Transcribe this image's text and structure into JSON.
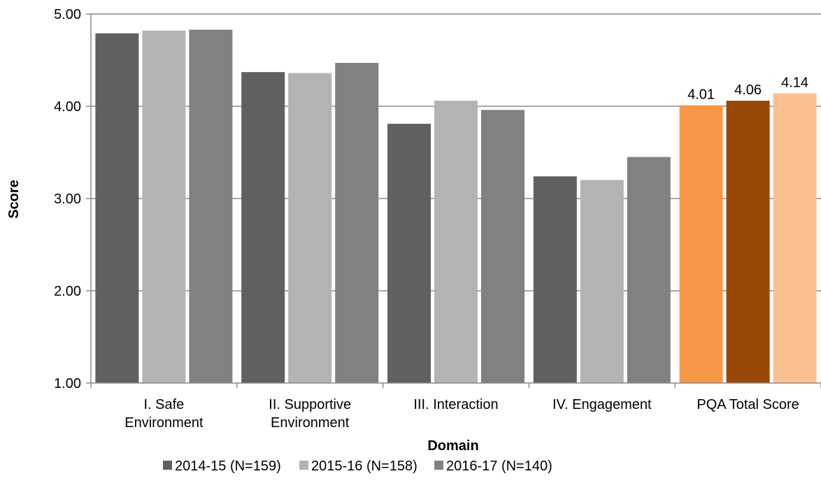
{
  "chart_data": {
    "type": "bar",
    "xlabel": "Domain",
    "ylabel": "Score",
    "ylim": [
      1,
      5
    ],
    "yticks": [
      "1.00",
      "2.00",
      "3.00",
      "4.00",
      "5.00"
    ],
    "ytick_values": [
      1,
      2,
      3,
      4,
      5
    ],
    "grid": true,
    "legend_position": "bottom",
    "categories": [
      [
        "I. Safe",
        "Environment"
      ],
      [
        "II. Supportive",
        "Environment"
      ],
      [
        "III. Interaction"
      ],
      [
        "IV. Engagement"
      ],
      [
        "PQA Total Score"
      ]
    ],
    "series": [
      {
        "name": "2014-15 (N=159)",
        "color": "#606060",
        "values": [
          4.79,
          4.37,
          3.81,
          3.24,
          4.01
        ]
      },
      {
        "name": "2015-16 (N=158)",
        "color": "#b3b3b3",
        "values": [
          4.82,
          4.36,
          4.06,
          3.2,
          4.06
        ]
      },
      {
        "name": "2016-17 (N=140)",
        "color": "#818181",
        "values": [
          4.83,
          4.47,
          3.96,
          3.45,
          4.14
        ]
      }
    ],
    "highlight": {
      "category_index": 4,
      "colors": [
        "#f79646",
        "#984807",
        "#fac090"
      ],
      "labels": [
        "4.01",
        "4.06",
        "4.14"
      ]
    }
  }
}
